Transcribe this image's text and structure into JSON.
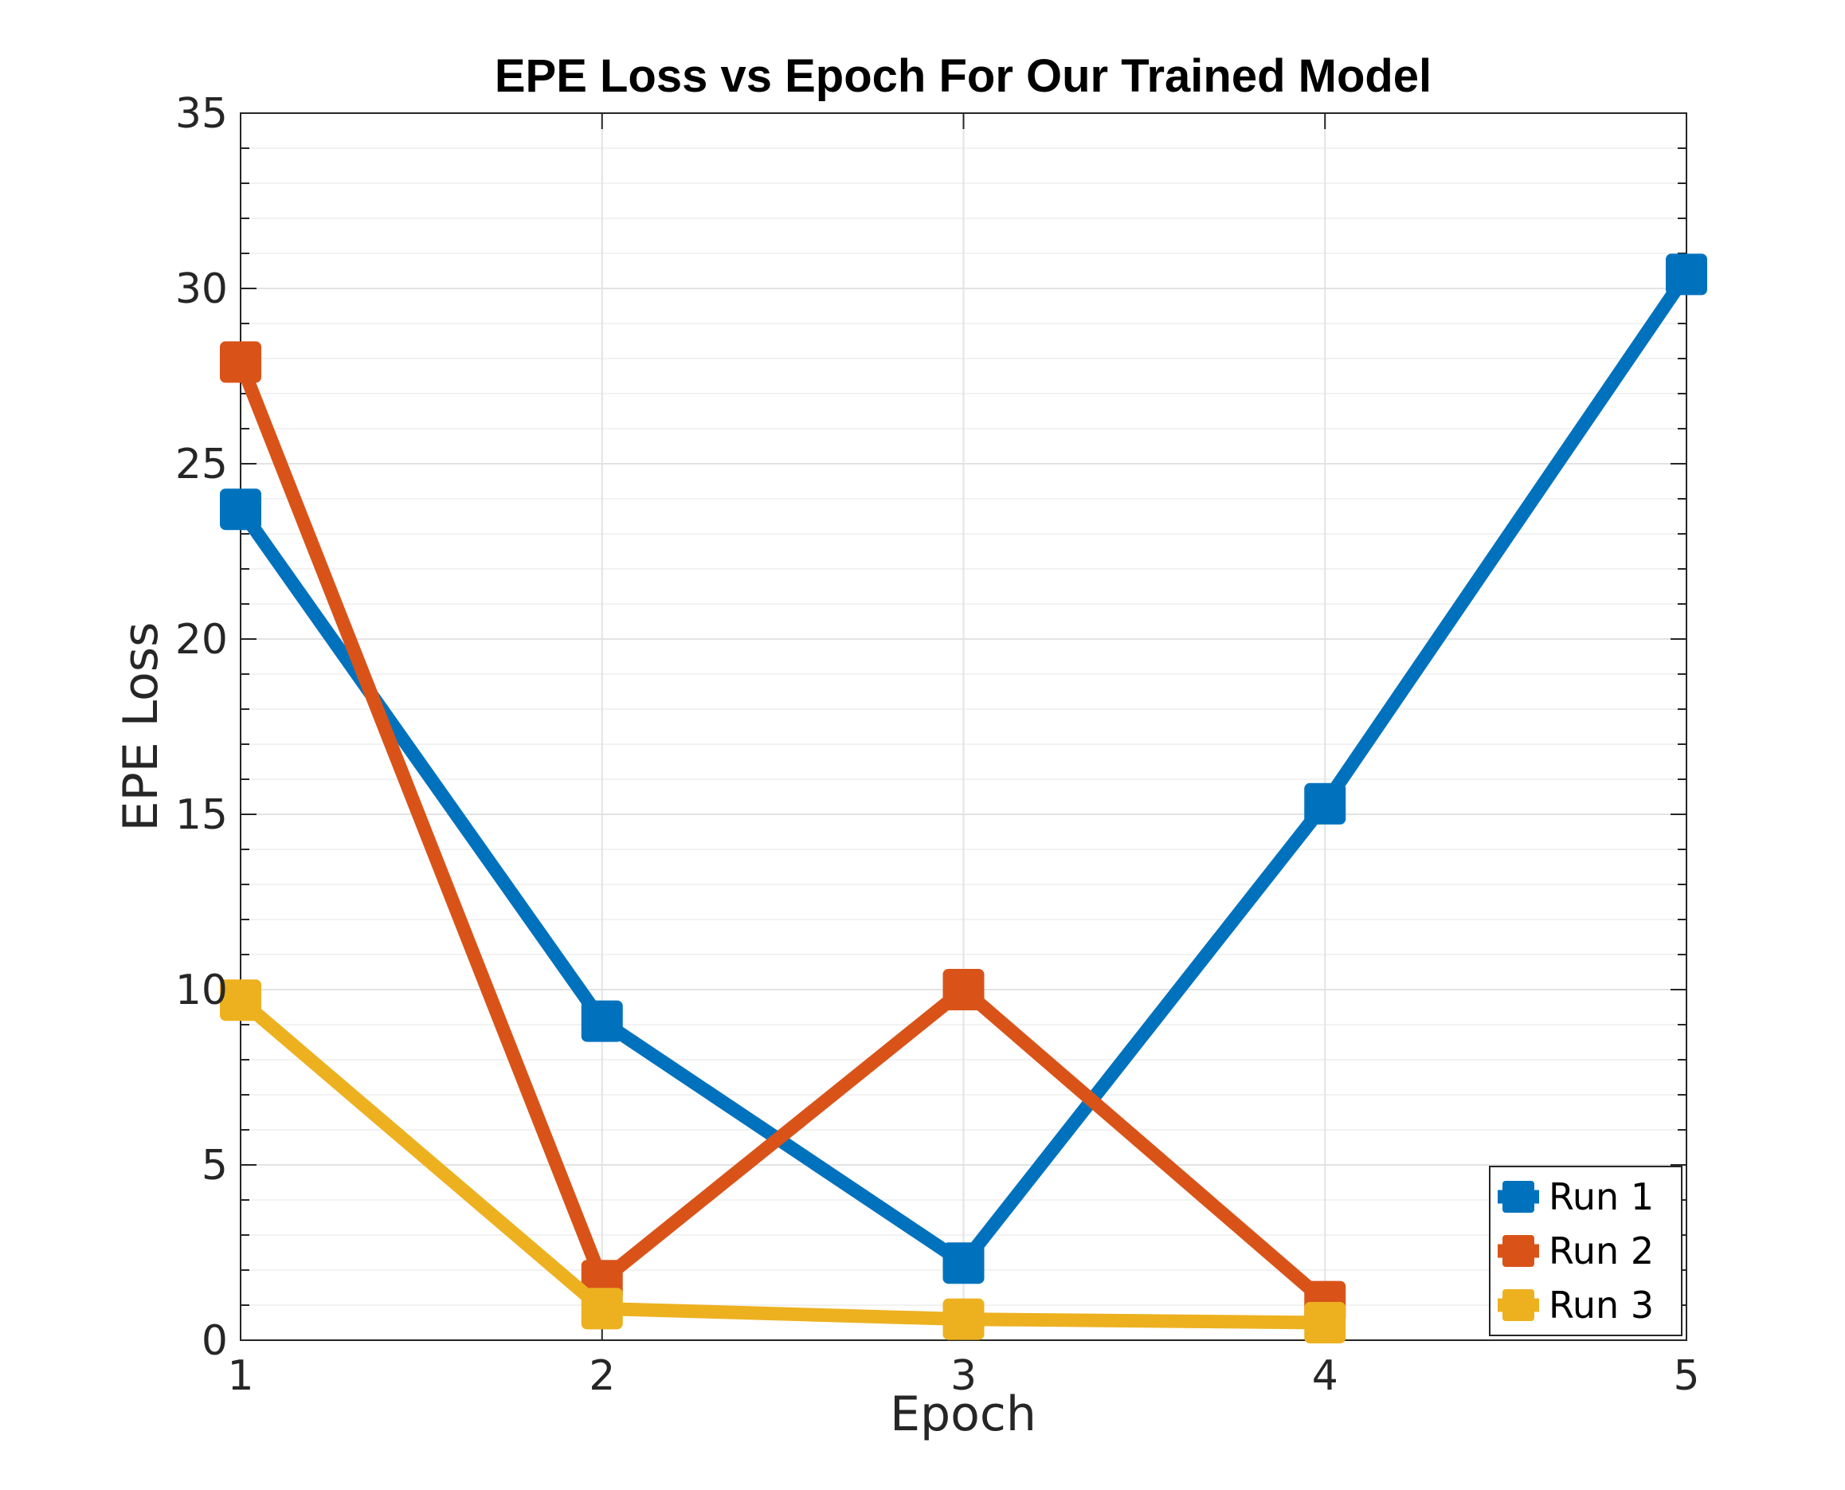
{
  "chart_data": {
    "type": "line",
    "title": "EPE Loss vs Epoch For Our Trained Model",
    "xlabel": "Epoch",
    "ylabel": "EPE Loss",
    "xlim": [
      1,
      5
    ],
    "ylim": [
      0,
      35
    ],
    "xticks": [
      1,
      2,
      3,
      4,
      5
    ],
    "yticks": [
      0,
      5,
      10,
      15,
      20,
      25,
      30,
      35
    ],
    "grid": true,
    "minor_grid": true,
    "legend_position": "bottom-right",
    "marker": "square",
    "series": [
      {
        "name": "Run 1",
        "color": "#0072BD",
        "x": [
          1,
          2,
          3,
          4,
          5
        ],
        "y": [
          23.7,
          9.1,
          2.2,
          15.3,
          30.4
        ]
      },
      {
        "name": "Run 2",
        "color": "#D95319",
        "x": [
          1,
          2,
          3,
          4
        ],
        "y": [
          27.9,
          1.7,
          10.0,
          1.1
        ]
      },
      {
        "name": "Run 3",
        "color": "#EDB120",
        "x": [
          1,
          2,
          3,
          4
        ],
        "y": [
          9.7,
          0.9,
          0.6,
          0.5
        ]
      }
    ]
  }
}
